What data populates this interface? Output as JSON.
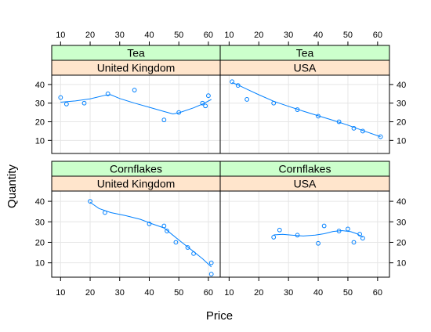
{
  "chart_data": {
    "type": "scatter",
    "xlabel": "Price",
    "ylabel": "Quantity",
    "xlim": [
      7,
      64
    ],
    "ylim": [
      3,
      45
    ],
    "x_ticks": [
      10,
      20,
      30,
      40,
      50,
      60
    ],
    "y_ticks": [
      10,
      20,
      30,
      40
    ],
    "grid": true,
    "colors": {
      "points": "#0080ff",
      "strip_product": "#ccffcc",
      "strip_country": "#ffe5cc",
      "grid": "#e6e6e6"
    },
    "panels": [
      {
        "product": "Tea",
        "country": "United Kingdom",
        "points": [
          [
            10,
            33
          ],
          [
            12,
            29.5
          ],
          [
            18,
            30
          ],
          [
            26,
            35
          ],
          [
            35,
            37
          ],
          [
            45,
            21
          ],
          [
            50,
            25
          ],
          [
            58,
            30
          ],
          [
            59,
            28.5
          ],
          [
            60,
            34
          ]
        ],
        "smooth": [
          [
            10,
            30.5
          ],
          [
            15,
            31.2
          ],
          [
            20,
            32.3
          ],
          [
            25,
            34.2
          ],
          [
            27,
            34.5
          ],
          [
            30,
            32.5
          ],
          [
            35,
            30
          ],
          [
            40,
            27.8
          ],
          [
            45,
            25.5
          ],
          [
            48,
            24.2
          ],
          [
            50,
            24.8
          ],
          [
            55,
            27.5
          ],
          [
            58,
            29.5
          ],
          [
            61,
            32
          ]
        ]
      },
      {
        "product": "Tea",
        "country": "USA",
        "points": [
          [
            11,
            41.5
          ],
          [
            13,
            39.5
          ],
          [
            16,
            32
          ],
          [
            25,
            30
          ],
          [
            33,
            26.5
          ],
          [
            40,
            23
          ],
          [
            47,
            20
          ],
          [
            52,
            16.5
          ],
          [
            55,
            15
          ],
          [
            61,
            12
          ]
        ],
        "smooth": [
          [
            11,
            41
          ],
          [
            13,
            39.8
          ],
          [
            16,
            37.5
          ],
          [
            20,
            34.5
          ],
          [
            25,
            31
          ],
          [
            30,
            28.3
          ],
          [
            35,
            25.7
          ],
          [
            40,
            23.2
          ],
          [
            45,
            20.8
          ],
          [
            50,
            18.2
          ],
          [
            55,
            15.3
          ],
          [
            61,
            12
          ]
        ]
      },
      {
        "product": "Cornflakes",
        "country": "United Kingdom",
        "points": [
          [
            20,
            40
          ],
          [
            25,
            34.5
          ],
          [
            40,
            29
          ],
          [
            45,
            28
          ],
          [
            46,
            25.5
          ],
          [
            49,
            20
          ],
          [
            53,
            17.5
          ],
          [
            55,
            14.5
          ],
          [
            61,
            10
          ],
          [
            61,
            4.5
          ]
        ],
        "smooth": [
          [
            20,
            39.5
          ],
          [
            23,
            36.5
          ],
          [
            27,
            34.5
          ],
          [
            32,
            33
          ],
          [
            37,
            31.2
          ],
          [
            41,
            29
          ],
          [
            45,
            27
          ],
          [
            48,
            23.5
          ],
          [
            51,
            20
          ],
          [
            55,
            15.5
          ],
          [
            58,
            12
          ],
          [
            61,
            8
          ]
        ]
      },
      {
        "product": "Cornflakes",
        "country": "USA",
        "points": [
          [
            25,
            22.5
          ],
          [
            27,
            26
          ],
          [
            33,
            23.5
          ],
          [
            40,
            19.5
          ],
          [
            42,
            28
          ],
          [
            47,
            25.5
          ],
          [
            50,
            26.5
          ],
          [
            52,
            20
          ],
          [
            54,
            24
          ],
          [
            55,
            22
          ]
        ],
        "smooth": [
          [
            25,
            23.6
          ],
          [
            28,
            23.9
          ],
          [
            31,
            23.5
          ],
          [
            35,
            23.1
          ],
          [
            39,
            23.5
          ],
          [
            42,
            24.2
          ],
          [
            45,
            25.3
          ],
          [
            48,
            25.7
          ],
          [
            51,
            25.2
          ],
          [
            53,
            24.2
          ],
          [
            55,
            22.5
          ]
        ]
      }
    ]
  }
}
